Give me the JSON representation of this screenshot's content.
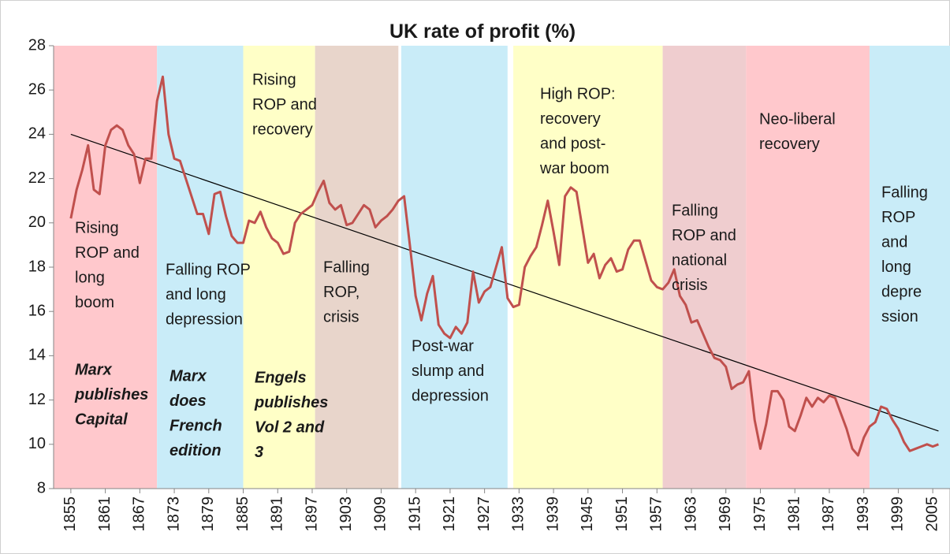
{
  "chart_data": {
    "type": "line",
    "title": "UK rate of profit (%)",
    "x": [
      1855,
      1856,
      1857,
      1858,
      1859,
      1860,
      1861,
      1862,
      1863,
      1864,
      1865,
      1866,
      1867,
      1868,
      1869,
      1870,
      1871,
      1872,
      1873,
      1874,
      1875,
      1876,
      1877,
      1878,
      1879,
      1880,
      1881,
      1882,
      1883,
      1884,
      1885,
      1886,
      1887,
      1888,
      1889,
      1890,
      1891,
      1892,
      1893,
      1894,
      1895,
      1896,
      1897,
      1898,
      1899,
      1900,
      1901,
      1902,
      1903,
      1904,
      1905,
      1906,
      1907,
      1908,
      1909,
      1910,
      1911,
      1912,
      1913,
      1914,
      1915,
      1916,
      1917,
      1918,
      1919,
      1920,
      1921,
      1922,
      1923,
      1924,
      1925,
      1926,
      1927,
      1928,
      1929,
      1930,
      1931,
      1932,
      1933,
      1934,
      1935,
      1936,
      1937,
      1938,
      1939,
      1940,
      1941,
      1942,
      1943,
      1944,
      1945,
      1946,
      1947,
      1948,
      1949,
      1950,
      1951,
      1952,
      1953,
      1954,
      1955,
      1956,
      1957,
      1958,
      1959,
      1960,
      1961,
      1962,
      1963,
      1964,
      1965,
      1966,
      1967,
      1968,
      1969,
      1970,
      1971,
      1972,
      1973,
      1974,
      1975,
      1976,
      1977,
      1978,
      1979,
      1980,
      1981,
      1982,
      1983,
      1984,
      1985,
      1986,
      1987,
      1988,
      1989,
      1990,
      1991,
      1992,
      1993,
      1994,
      1995,
      1996,
      1997,
      1998,
      1999,
      2000,
      2001,
      2002,
      2003,
      2004,
      2005,
      2006
    ],
    "values": [
      20.2,
      21.5,
      22.4,
      23.5,
      21.5,
      21.3,
      23.5,
      24.2,
      24.4,
      24.2,
      23.5,
      23.1,
      21.8,
      22.9,
      22.9,
      25.5,
      26.6,
      24.0,
      22.9,
      22.8,
      22.0,
      21.2,
      20.4,
      20.4,
      19.5,
      21.3,
      21.4,
      20.3,
      19.4,
      19.1,
      19.1,
      20.1,
      20.0,
      20.5,
      19.8,
      19.3,
      19.1,
      18.6,
      18.7,
      20.0,
      20.4,
      20.6,
      20.8,
      21.4,
      21.9,
      20.9,
      20.6,
      20.8,
      19.9,
      20.0,
      20.4,
      20.8,
      20.6,
      19.8,
      20.1,
      20.3,
      20.6,
      21.0,
      21.2,
      19.0,
      16.7,
      15.6,
      16.8,
      17.6,
      15.4,
      15.0,
      14.8,
      15.3,
      15.0,
      15.5,
      17.8,
      16.4,
      16.9,
      17.1,
      18.0,
      18.9,
      16.6,
      16.2,
      16.3,
      18.0,
      18.5,
      18.9,
      19.9,
      21.0,
      19.6,
      18.1,
      21.2,
      21.6,
      21.4,
      19.8,
      18.2,
      18.6,
      17.5,
      18.1,
      18.4,
      17.8,
      17.9,
      18.8,
      19.2,
      19.2,
      18.3,
      17.4,
      17.1,
      17.0,
      17.3,
      17.9,
      16.7,
      16.3,
      15.5,
      15.6,
      15.0,
      14.4,
      13.9,
      13.8,
      13.5,
      12.5,
      12.7,
      12.8,
      13.3,
      11.1,
      9.8,
      10.9,
      12.4,
      12.4,
      12.0,
      10.8,
      10.6,
      11.3,
      12.1,
      11.7,
      12.1,
      11.9,
      12.2,
      12.1,
      11.4,
      10.7,
      9.8,
      9.5,
      10.3,
      10.8,
      11.0,
      11.7,
      11.6,
      11.1,
      10.7,
      10.1,
      9.7,
      9.8,
      9.9,
      10.0,
      9.9,
      10.0
    ],
    "color": "#c0504d",
    "xlim": [
      1852,
      2008
    ],
    "ylim": [
      8,
      28
    ],
    "xticks": [
      1855,
      1861,
      1867,
      1873,
      1879,
      1885,
      1891,
      1897,
      1903,
      1909,
      1915,
      1921,
      1927,
      1933,
      1939,
      1945,
      1951,
      1957,
      1963,
      1969,
      1975,
      1981,
      1987,
      1993,
      1999,
      2005
    ],
    "yticks": [
      8,
      10,
      12,
      14,
      16,
      18,
      20,
      22,
      24,
      26,
      28
    ],
    "trend": {
      "x": [
        1855,
        2006
      ],
      "values": [
        24,
        10.6
      ],
      "color": "#000000"
    },
    "bands": [
      {
        "start": 1852,
        "end": 1870,
        "color": "#ffc8cc",
        "label": [
          "Rising",
          "ROP and",
          "long",
          "boom"
        ],
        "note": [
          "Marx",
          "publishes",
          "Capital"
        ]
      },
      {
        "start": 1870,
        "end": 1885,
        "color": "#c9ecf8",
        "label": [
          "Falling ROP",
          "and long",
          "depression"
        ],
        "note": [
          "Marx",
          "does",
          "French",
          "edition"
        ]
      },
      {
        "start": 1885,
        "end": 1897.5,
        "color": "#ffffc7",
        "label": [
          "Rising",
          "ROP and",
          "recovery"
        ],
        "note": [
          "Engels",
          "publishes",
          "Vol 2 and",
          "3"
        ]
      },
      {
        "start": 1897.5,
        "end": 1912,
        "color": "#e8d5cb",
        "label": [
          "Falling",
          "ROP,",
          "crisis"
        ]
      },
      {
        "start": 1912.5,
        "end": 1931,
        "color": "#c9ecf8",
        "label": [
          "Post-war",
          "slump and",
          "depression"
        ]
      },
      {
        "start": 1932,
        "end": 1958,
        "color": "#ffffc7",
        "label": [
          "High ROP:",
          "recovery",
          "and post-",
          "war boom"
        ]
      },
      {
        "start": 1958,
        "end": 1972.5,
        "color": "#efcdcf",
        "label": [
          "Falling",
          "ROP and",
          "national",
          "crisis"
        ]
      },
      {
        "start": 1972.5,
        "end": 1994,
        "color": "#ffc8cc",
        "label": [
          "Neo-liberal",
          "recovery"
        ]
      },
      {
        "start": 1994,
        "end": 2008,
        "color": "#c9ecf8",
        "label": [
          "Falling",
          "ROP",
          "and",
          "long",
          "depre",
          "ssion"
        ]
      }
    ]
  }
}
